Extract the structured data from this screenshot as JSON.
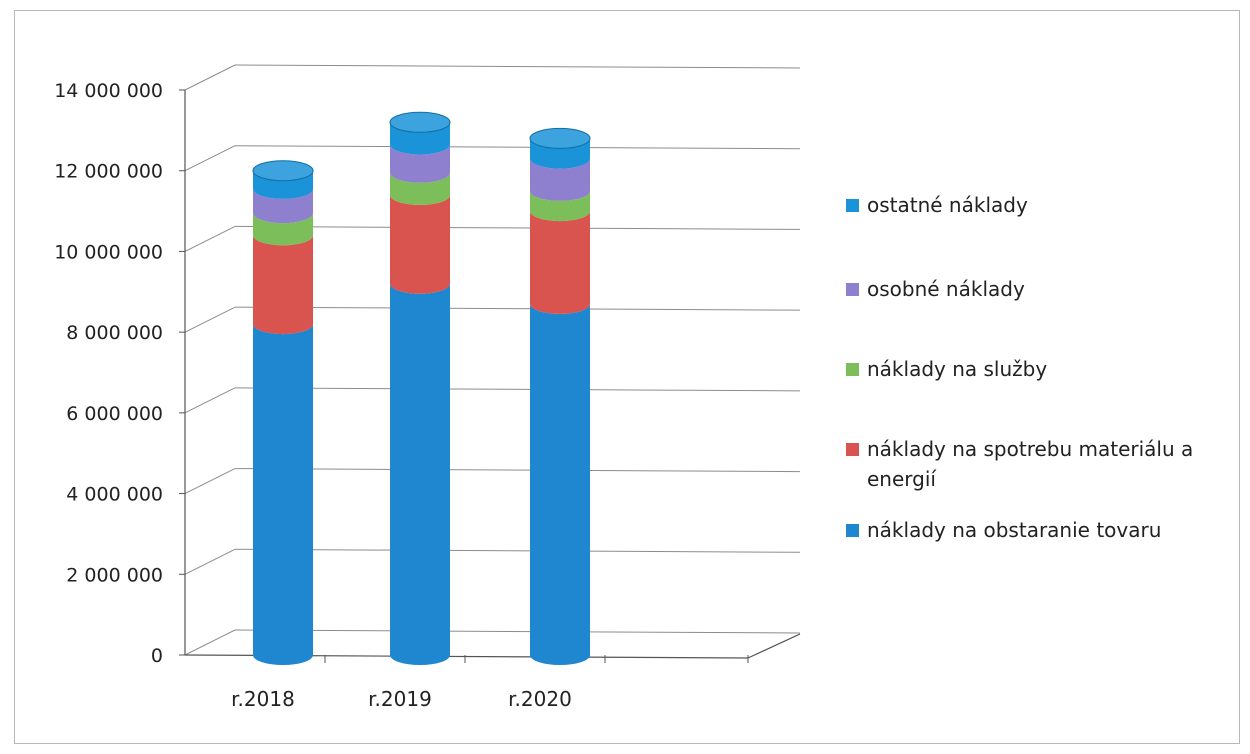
{
  "chart_data": {
    "type": "bar",
    "stacked": true,
    "style": "3d-cylinder",
    "categories": [
      "r.2018",
      "r.2019",
      "r.2020"
    ],
    "ylim": [
      0,
      14000000
    ],
    "yticks": [
      0,
      2000000,
      4000000,
      6000000,
      8000000,
      10000000,
      12000000,
      14000000
    ],
    "ytick_labels": [
      "0",
      "2 000 000",
      "4 000 000",
      "6 000 000",
      "8 000 000",
      "10 000 000",
      "12 000 000",
      "14 000 000"
    ],
    "grid": true,
    "legend_position": "right",
    "series": [
      {
        "name": "náklady na obstaranie tovaru",
        "color": "#1f86d0",
        "values": [
          8200000,
          9200000,
          8700000
        ]
      },
      {
        "name": "náklady na spotrebu  materiálu a energií",
        "color": "#d9534f",
        "values": [
          2200000,
          2200000,
          2300000
        ]
      },
      {
        "name": "náklady na služby",
        "color": "#7cbf5a",
        "values": [
          550000,
          550000,
          500000
        ]
      },
      {
        "name": "osobné náklady",
        "color": "#8f7fcf",
        "values": [
          600000,
          700000,
          800000
        ]
      },
      {
        "name": "ostatné náklady",
        "color": "#1a93d8",
        "values": [
          450000,
          550000,
          500000
        ]
      }
    ],
    "legend_order": [
      "ostatné náklady",
      "osobné náklady",
      "náklady na služby",
      "náklady na spotrebu  materiálu a energií",
      "náklady na obstaranie tovaru"
    ]
  }
}
